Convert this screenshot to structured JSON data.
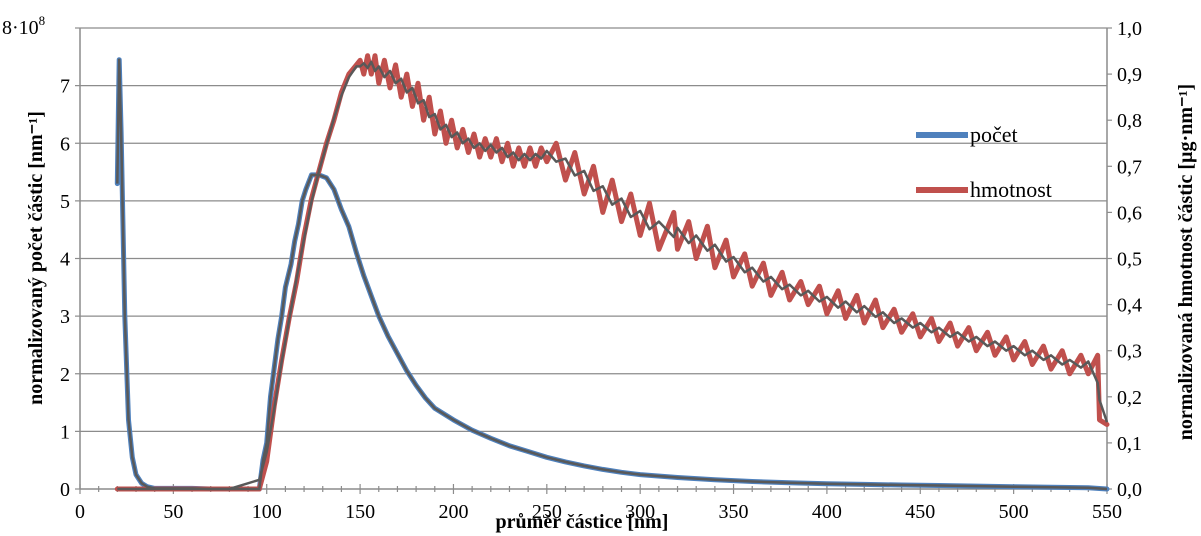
{
  "chart_data": {
    "type": "line",
    "xlabel": "průměr částice [nm]",
    "ylabel_left": "normalizovaný počet částic [nm⁻¹]",
    "ylabel_right": "normalizovaná hmotnost částic [µg·nm⁻¹]",
    "xlim": [
      0,
      550
    ],
    "ylim_left": [
      0,
      8
    ],
    "ylim_right": [
      0,
      1.0
    ],
    "x_ticks": [
      "0",
      "50",
      "100",
      "150",
      "200",
      "250",
      "300",
      "350",
      "400",
      "450",
      "500",
      "550"
    ],
    "y_left_ticks": [
      "0",
      "1",
      "2",
      "3",
      "4",
      "5",
      "6",
      "7"
    ],
    "y_left_top_label": {
      "mantissa": "8·10",
      "exponent": "8"
    },
    "y_right_ticks": [
      "0,0",
      "0,1",
      "0,2",
      "0,3",
      "0,4",
      "0,5",
      "0,6",
      "0,7",
      "0,8",
      "0,9",
      "1,0"
    ],
    "grid": true,
    "legend": "right",
    "series": [
      {
        "name": "počet",
        "axis": "left",
        "color": "#4f81bd",
        "points": [
          [
            20,
            5.3
          ],
          [
            21,
            7.45
          ],
          [
            22,
            6.2
          ],
          [
            24,
            3.0
          ],
          [
            26,
            1.2
          ],
          [
            28,
            0.55
          ],
          [
            30,
            0.25
          ],
          [
            33,
            0.1
          ],
          [
            36,
            0.04
          ],
          [
            40,
            0.01
          ],
          [
            50,
            0.01
          ],
          [
            60,
            0.01
          ],
          [
            70,
            0.0
          ],
          [
            80,
            0.0
          ],
          [
            90,
            0.0
          ],
          [
            96,
            0.0
          ],
          [
            98,
            0.5
          ],
          [
            100,
            0.8
          ],
          [
            102,
            1.6
          ],
          [
            104,
            2.1
          ],
          [
            106,
            2.6
          ],
          [
            108,
            3.0
          ],
          [
            110,
            3.5
          ],
          [
            113,
            3.9
          ],
          [
            115,
            4.3
          ],
          [
            117,
            4.6
          ],
          [
            119,
            5.0
          ],
          [
            121,
            5.2
          ],
          [
            124,
            5.45
          ],
          [
            128,
            5.45
          ],
          [
            132,
            5.4
          ],
          [
            136,
            5.2
          ],
          [
            140,
            4.85
          ],
          [
            144,
            4.55
          ],
          [
            148,
            4.1
          ],
          [
            152,
            3.7
          ],
          [
            156,
            3.35
          ],
          [
            160,
            3.0
          ],
          [
            165,
            2.65
          ],
          [
            170,
            2.35
          ],
          [
            175,
            2.05
          ],
          [
            180,
            1.8
          ],
          [
            185,
            1.58
          ],
          [
            190,
            1.4
          ],
          [
            200,
            1.2
          ],
          [
            210,
            1.02
          ],
          [
            220,
            0.88
          ],
          [
            230,
            0.75
          ],
          [
            240,
            0.65
          ],
          [
            250,
            0.55
          ],
          [
            260,
            0.47
          ],
          [
            270,
            0.4
          ],
          [
            280,
            0.34
          ],
          [
            290,
            0.29
          ],
          [
            300,
            0.25
          ],
          [
            320,
            0.2
          ],
          [
            340,
            0.16
          ],
          [
            360,
            0.13
          ],
          [
            380,
            0.11
          ],
          [
            400,
            0.09
          ],
          [
            420,
            0.08
          ],
          [
            440,
            0.07
          ],
          [
            460,
            0.06
          ],
          [
            480,
            0.05
          ],
          [
            500,
            0.04
          ],
          [
            520,
            0.03
          ],
          [
            540,
            0.02
          ],
          [
            550,
            0.0
          ]
        ]
      },
      {
        "name": "hmotnost",
        "axis": "right",
        "color": "#c0504d",
        "points": [
          [
            20,
            0.0
          ],
          [
            40,
            0.0
          ],
          [
            60,
            0.0
          ],
          [
            80,
            0.0
          ],
          [
            96,
            0.0
          ],
          [
            100,
            0.06
          ],
          [
            104,
            0.18
          ],
          [
            108,
            0.28
          ],
          [
            112,
            0.37
          ],
          [
            116,
            0.45
          ],
          [
            120,
            0.55
          ],
          [
            124,
            0.63
          ],
          [
            128,
            0.69
          ],
          [
            132,
            0.75
          ],
          [
            136,
            0.8
          ],
          [
            140,
            0.86
          ],
          [
            144,
            0.9
          ],
          [
            148,
            0.92
          ],
          [
            150,
            0.93
          ],
          [
            152,
            0.9
          ],
          [
            154,
            0.94
          ],
          [
            156,
            0.9
          ],
          [
            158,
            0.94
          ],
          [
            160,
            0.88
          ],
          [
            163,
            0.93
          ],
          [
            166,
            0.87
          ],
          [
            169,
            0.92
          ],
          [
            172,
            0.85
          ],
          [
            175,
            0.9
          ],
          [
            178,
            0.83
          ],
          [
            181,
            0.88
          ],
          [
            184,
            0.8
          ],
          [
            187,
            0.85
          ],
          [
            190,
            0.77
          ],
          [
            193,
            0.82
          ],
          [
            196,
            0.75
          ],
          [
            199,
            0.8
          ],
          [
            202,
            0.74
          ],
          [
            205,
            0.78
          ],
          [
            208,
            0.73
          ],
          [
            211,
            0.77
          ],
          [
            214,
            0.72
          ],
          [
            217,
            0.76
          ],
          [
            220,
            0.72
          ],
          [
            223,
            0.76
          ],
          [
            226,
            0.71
          ],
          [
            229,
            0.75
          ],
          [
            232,
            0.7
          ],
          [
            235,
            0.74
          ],
          [
            238,
            0.7
          ],
          [
            241,
            0.74
          ],
          [
            244,
            0.7
          ],
          [
            247,
            0.74
          ],
          [
            250,
            0.71
          ],
          [
            255,
            0.75
          ],
          [
            260,
            0.67
          ],
          [
            265,
            0.73
          ],
          [
            270,
            0.64
          ],
          [
            275,
            0.7
          ],
          [
            280,
            0.6
          ],
          [
            285,
            0.67
          ],
          [
            290,
            0.58
          ],
          [
            295,
            0.64
          ],
          [
            300,
            0.55
          ],
          [
            305,
            0.62
          ],
          [
            310,
            0.52
          ],
          [
            318,
            0.6
          ],
          [
            320,
            0.52
          ],
          [
            326,
            0.58
          ],
          [
            330,
            0.5
          ],
          [
            336,
            0.57
          ],
          [
            340,
            0.48
          ],
          [
            346,
            0.54
          ],
          [
            350,
            0.46
          ],
          [
            356,
            0.51
          ],
          [
            360,
            0.44
          ],
          [
            366,
            0.49
          ],
          [
            370,
            0.42
          ],
          [
            376,
            0.47
          ],
          [
            380,
            0.41
          ],
          [
            386,
            0.45
          ],
          [
            390,
            0.4
          ],
          [
            396,
            0.44
          ],
          [
            400,
            0.38
          ],
          [
            406,
            0.43
          ],
          [
            410,
            0.37
          ],
          [
            416,
            0.42
          ],
          [
            420,
            0.36
          ],
          [
            426,
            0.41
          ],
          [
            430,
            0.35
          ],
          [
            436,
            0.39
          ],
          [
            440,
            0.34
          ],
          [
            446,
            0.38
          ],
          [
            450,
            0.33
          ],
          [
            456,
            0.37
          ],
          [
            460,
            0.32
          ],
          [
            466,
            0.36
          ],
          [
            470,
            0.31
          ],
          [
            476,
            0.35
          ],
          [
            480,
            0.3
          ],
          [
            486,
            0.34
          ],
          [
            490,
            0.29
          ],
          [
            496,
            0.33
          ],
          [
            500,
            0.28
          ],
          [
            506,
            0.32
          ],
          [
            510,
            0.27
          ],
          [
            516,
            0.31
          ],
          [
            520,
            0.26
          ],
          [
            526,
            0.3
          ],
          [
            530,
            0.25
          ],
          [
            536,
            0.29
          ],
          [
            540,
            0.25
          ],
          [
            545,
            0.29
          ],
          [
            546,
            0.15
          ],
          [
            550,
            0.14
          ]
        ]
      }
    ]
  },
  "colors": {
    "trend_line": "#595959",
    "grid": "#8c8c8c",
    "axis": "#8c8c8c"
  }
}
